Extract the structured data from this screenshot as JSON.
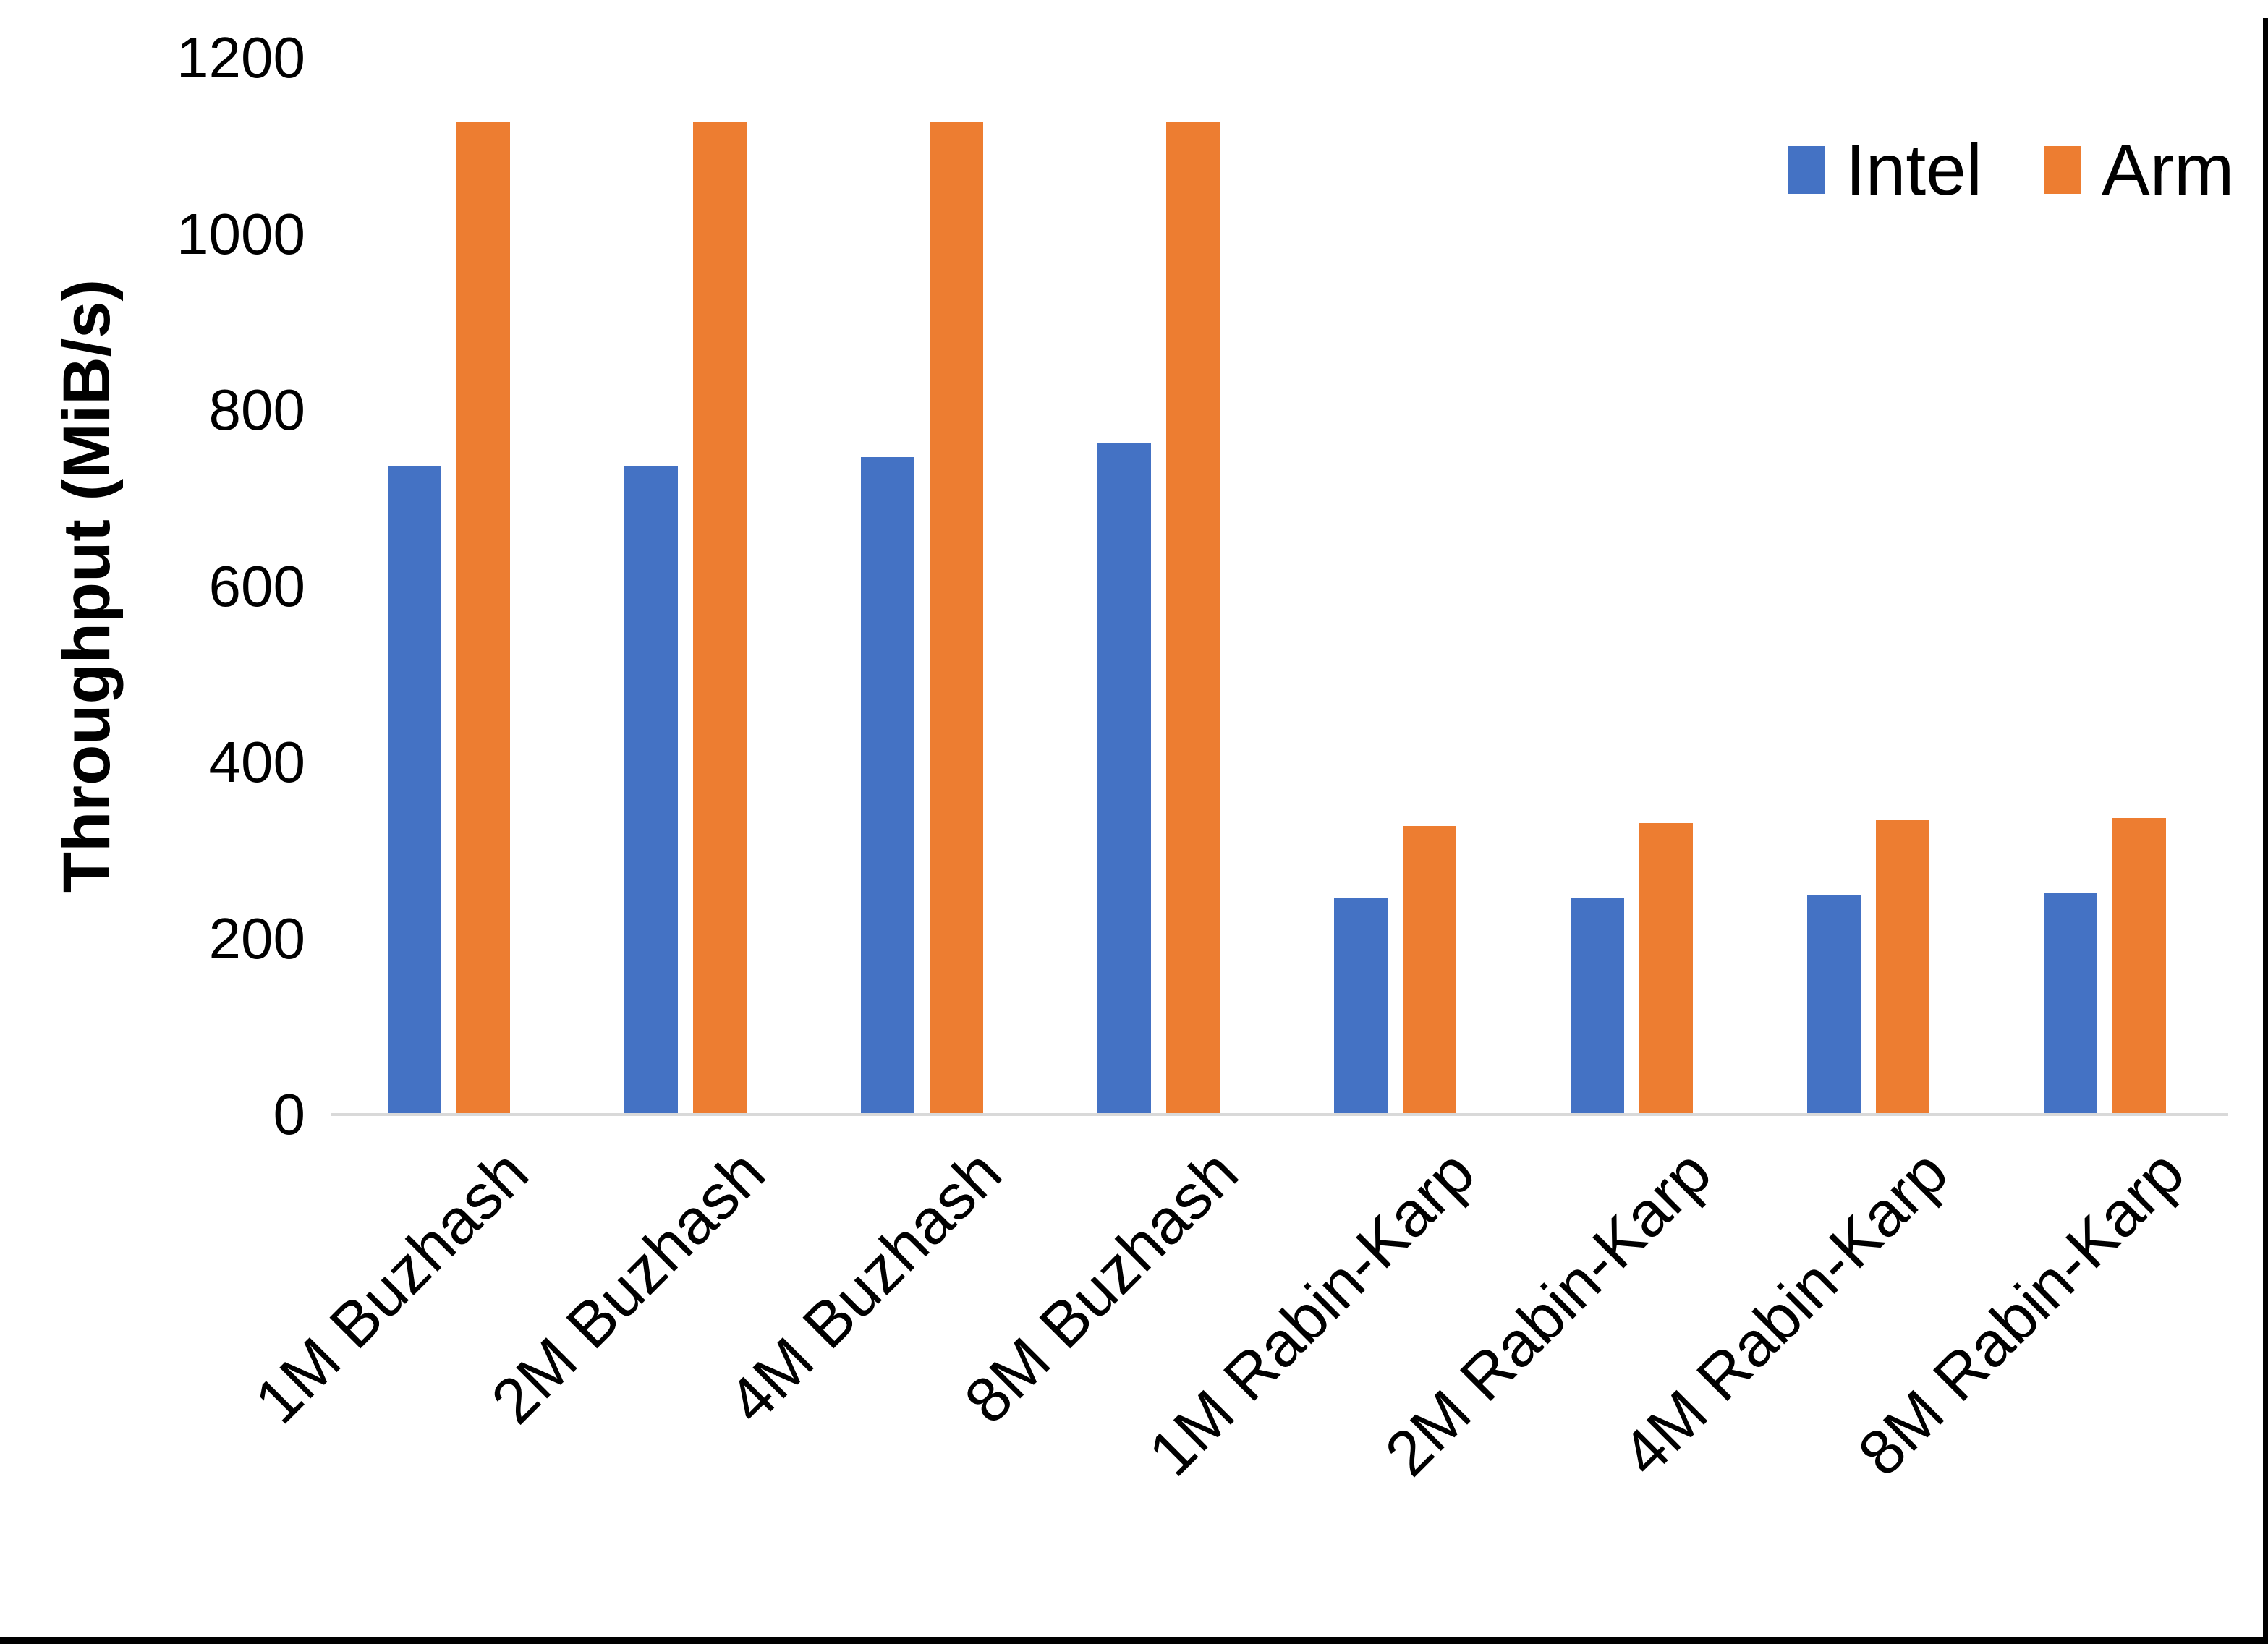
{
  "chart_data": {
    "type": "bar",
    "title": "",
    "xlabel": "",
    "ylabel": "Throughput (MiB/s)",
    "categories": [
      "1M Buzhash",
      "2M Buzhash",
      "4M Buzhash",
      "8M Buzhash",
      "1M Rabin-Karp",
      "2M Rabin-Karp",
      "4M Rabin-Karp",
      "8M Rabin-Karp"
    ],
    "series": [
      {
        "name": "Intel",
        "color": "#4472C4",
        "values": [
          737,
          737,
          747,
          762,
          246,
          246,
          250,
          252
        ]
      },
      {
        "name": "Arm",
        "color": "#ED7D31",
        "values": [
          1128,
          1128,
          1128,
          1128,
          328,
          331,
          334,
          337
        ]
      }
    ],
    "ylim": [
      0,
      1200
    ],
    "yticks": [
      0,
      200,
      400,
      600,
      800,
      1000,
      1200
    ],
    "grid": false,
    "legend_position": "top-right",
    "axis_line_color": "#D9D9D9",
    "text_color": "#000000"
  },
  "frame": {
    "right_border_color": "#000000",
    "bottom_border_color": "#000000"
  }
}
